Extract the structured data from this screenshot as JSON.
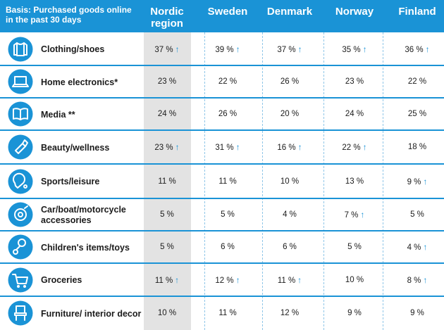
{
  "chart_data": {
    "type": "table",
    "basis": "Basis: Purchased goods online in the past 30 days",
    "columns": [
      "Nordic region",
      "Sweden",
      "Denmark",
      "Norway",
      "Finland"
    ],
    "rows": [
      {
        "category": "Clothing/shoes",
        "icon": "shirt-icon",
        "values": [
          "37 %",
          "39 %",
          "37 %",
          "35 %",
          "36 %"
        ],
        "up": [
          true,
          true,
          true,
          true,
          true
        ]
      },
      {
        "category": "Home electronics*",
        "icon": "laptop-icon",
        "values": [
          "23 %",
          "22 %",
          "26 %",
          "23 %",
          "22 %"
        ],
        "up": [
          false,
          false,
          false,
          false,
          false
        ]
      },
      {
        "category": "Media **",
        "icon": "book-icon",
        "values": [
          "24 %",
          "26 %",
          "20 %",
          "24 %",
          "25 %"
        ],
        "up": [
          false,
          false,
          false,
          false,
          false
        ]
      },
      {
        "category": "Beauty/wellness",
        "icon": "lipstick-icon",
        "values": [
          "23 %",
          "31 %",
          "16 %",
          "22 %",
          "18 %"
        ],
        "up": [
          true,
          true,
          true,
          true,
          false
        ]
      },
      {
        "category": "Sports/leisure",
        "icon": "ping-pong-icon",
        "values": [
          "11 %",
          "11 %",
          "10 %",
          "13 %",
          "9 %"
        ],
        "up": [
          false,
          false,
          false,
          false,
          true
        ]
      },
      {
        "category": "Car/boat/motorcycle accessories",
        "icon": "gear-wheel-icon",
        "values": [
          "5 %",
          "5 %",
          "4 %",
          "7 %",
          "5 %"
        ],
        "up": [
          false,
          false,
          false,
          true,
          false
        ]
      },
      {
        "category": "Children's items/toys",
        "icon": "pacifier-icon",
        "values": [
          "5 %",
          "6 %",
          "6 %",
          "5 %",
          "4 %"
        ],
        "up": [
          false,
          false,
          false,
          false,
          true
        ]
      },
      {
        "category": "Groceries",
        "icon": "shopping-cart-icon",
        "values": [
          "11 %",
          "12 %",
          "11 %",
          "10 %",
          "8 %"
        ],
        "up": [
          true,
          true,
          true,
          false,
          true
        ]
      },
      {
        "category": "Furniture/ interior decor",
        "icon": "chair-icon",
        "values": [
          "10 %",
          "11 %",
          "12 %",
          "9 %",
          "9 %"
        ],
        "up": [
          false,
          false,
          false,
          false,
          false
        ]
      }
    ],
    "up_arrow_symbol": "↑",
    "colors": {
      "accent": "#1a93d6",
      "nordic_highlight": "#e3e3e3",
      "text": "#1b1b1b"
    }
  }
}
